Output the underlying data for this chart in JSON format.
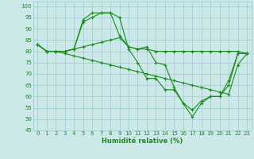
{
  "xlabel": "Humidité relative (%)",
  "x": [
    0,
    1,
    2,
    3,
    4,
    5,
    6,
    7,
    8,
    9,
    10,
    11,
    12,
    13,
    14,
    15,
    16,
    17,
    18,
    19,
    20,
    21,
    22,
    23
  ],
  "series": [
    [
      83,
      80,
      80,
      80,
      81,
      93,
      95,
      97,
      97,
      87,
      82,
      81,
      82,
      75,
      74,
      64,
      57,
      54,
      58,
      60,
      60,
      67,
      79,
      79
    ],
    [
      83,
      80,
      80,
      80,
      81,
      82,
      83,
      84,
      85,
      86,
      82,
      81,
      81,
      80,
      80,
      80,
      80,
      80,
      80,
      80,
      80,
      80,
      80,
      79
    ],
    [
      83,
      80,
      80,
      79,
      78,
      77,
      76,
      75,
      74,
      73,
      72,
      71,
      70,
      69,
      68,
      67,
      66,
      65,
      64,
      63,
      62,
      61,
      74,
      79
    ],
    [
      83,
      80,
      80,
      80,
      81,
      94,
      97,
      97,
      97,
      95,
      81,
      75,
      68,
      68,
      63,
      63,
      57,
      51,
      57,
      60,
      60,
      65,
      79,
      79
    ]
  ],
  "line_color": "#1a8c1a",
  "bg_color": "#cce8e8",
  "grid_color": "#99cccc",
  "ylim": [
    45,
    102
  ],
  "yticks": [
    45,
    50,
    55,
    60,
    65,
    70,
    75,
    80,
    85,
    90,
    95,
    100
  ],
  "xticks": [
    0,
    1,
    2,
    3,
    4,
    5,
    6,
    7,
    8,
    9,
    10,
    11,
    12,
    13,
    14,
    15,
    16,
    17,
    18,
    19,
    20,
    21,
    22,
    23
  ],
  "xlabel_fontsize": 6.0,
  "tick_fontsize": 5.0,
  "linewidth": 0.8,
  "markersize": 3.0
}
